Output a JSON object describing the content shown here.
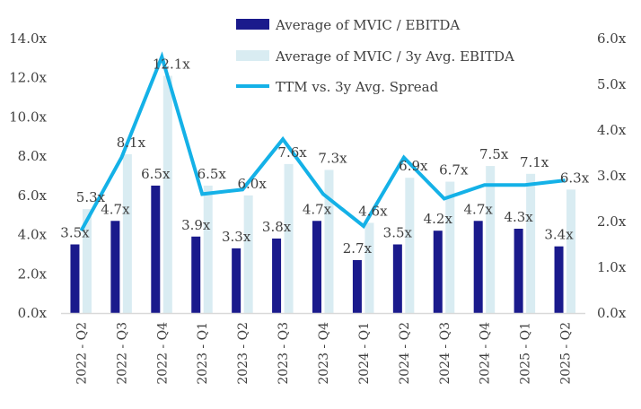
{
  "chart_data": {
    "type": "bar",
    "categories": [
      "2022 - Q2",
      "2022 - Q3",
      "2022 - Q4",
      "2023 - Q1",
      "2023 - Q2",
      "2023 - Q3",
      "2023 - Q4",
      "2024 - Q1",
      "2024 - Q2",
      "2024 - Q3",
      "2024 - Q4",
      "2025 - Q1",
      "2025 - Q2"
    ],
    "series": [
      {
        "name": "Average of MVIC / EBITDA",
        "kind": "bar",
        "axis": "left",
        "color": "#1a1a8c",
        "values": [
          3.5,
          4.7,
          6.5,
          3.9,
          3.3,
          3.8,
          4.7,
          2.7,
          3.5,
          4.2,
          4.7,
          4.3,
          3.4
        ],
        "labels": [
          "3.5x",
          "4.7x",
          "6.5x",
          "3.9x",
          "3.3x",
          "3.8x",
          "4.7x",
          "2.7x",
          "3.5x",
          "4.2x",
          "4.7x",
          "4.3x",
          "3.4x"
        ]
      },
      {
        "name": "Average of MVIC / 3y Avg. EBITDA",
        "kind": "bar",
        "axis": "left",
        "color": "#d9ecf2",
        "values": [
          5.3,
          8.1,
          12.1,
          6.5,
          6.0,
          7.6,
          7.3,
          4.6,
          6.9,
          6.7,
          7.5,
          7.1,
          6.3
        ],
        "labels": [
          "5.3x",
          "8.1x",
          "12.1x",
          "6.5x",
          "6.0x",
          "7.6x",
          "7.3x",
          "4.6x",
          "6.9x",
          "6.7x",
          "7.5x",
          "7.1x",
          "6.3x"
        ]
      },
      {
        "name": "TTM vs. 3y Avg. Spread",
        "kind": "line",
        "axis": "right",
        "color": "#14b1e7",
        "values": [
          1.8,
          3.4,
          5.6,
          2.6,
          2.7,
          3.8,
          2.6,
          1.9,
          3.4,
          2.5,
          2.8,
          2.8,
          2.9
        ]
      }
    ],
    "left_axis": {
      "ylim": [
        0,
        14
      ],
      "ticks": [
        "0.0x",
        "2.0x",
        "4.0x",
        "6.0x",
        "8.0x",
        "10.0x",
        "12.0x",
        "14.0x"
      ]
    },
    "right_axis": {
      "ylim": [
        0,
        6
      ],
      "ticks": [
        "0.0x",
        "1.0x",
        "2.0x",
        "3.0x",
        "4.0x",
        "5.0x",
        "6.0x"
      ]
    },
    "grid": false,
    "legend": "top-center"
  }
}
